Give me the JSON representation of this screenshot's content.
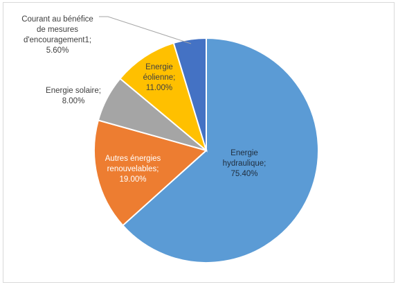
{
  "chart_data": {
    "type": "pie",
    "title": "",
    "slices": [
      {
        "label": "Energie hydraulique",
        "label_lines": [
          "Energie",
          "hydraulique;"
        ],
        "value_text": "75.40%",
        "value": 75.4,
        "color": "#5b9bd5",
        "label_color": "#1f2d3d"
      },
      {
        "label": "Autres énergies renouvelables",
        "label_lines": [
          "Autres énergies",
          "renouvelables;"
        ],
        "value_text": "19.00%",
        "value": 19.0,
        "color": "#ed7d31",
        "label_color": "#ffffff"
      },
      {
        "label": "Energie solaire",
        "label_lines": [
          "Energie solaire;"
        ],
        "value_text": "8.00%",
        "value": 8.0,
        "color": "#a5a5a5",
        "label_color": "#404040"
      },
      {
        "label": "Energie éolienne",
        "label_lines": [
          "Energie",
          "éolienne;"
        ],
        "value_text": "11.00%",
        "value": 11.0,
        "color": "#ffc000",
        "label_color": "#404040"
      },
      {
        "label": "Courant au bénéfice de mesures d'encouragement1",
        "label_lines": [
          "Courant au bénéfice",
          "de mesures",
          "d'encouragement1;"
        ],
        "value_text": "5.60%",
        "value": 5.6,
        "color": "#4472c4",
        "label_color": "#404040"
      }
    ]
  }
}
